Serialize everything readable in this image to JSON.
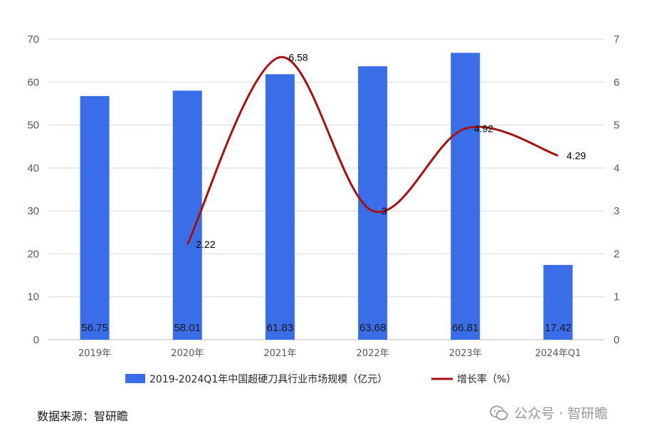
{
  "chart_data": {
    "type": "bar",
    "categories": [
      "2019年",
      "2020年",
      "2021年",
      "2022年",
      "2023年",
      "2024年Q1"
    ],
    "series": [
      {
        "name": "2019-2024Q1年中国超硬刀具行业市场规模（亿元）",
        "type": "bar",
        "axis": "left",
        "color": "#3a6ee8",
        "values": [
          56.75,
          58.01,
          61.83,
          63.68,
          66.81,
          17.42
        ],
        "labels": [
          "56.75",
          "58.01",
          "61.83",
          "63.68",
          "66.81",
          "17.42"
        ]
      },
      {
        "name": "增长率（%）",
        "type": "line",
        "axis": "right",
        "color": "#a80f0f",
        "values": [
          null,
          2.22,
          6.58,
          3,
          4.92,
          4.29
        ],
        "labels": [
          "",
          "2.22",
          "6.58",
          "3",
          "4.92",
          "4.29"
        ]
      }
    ],
    "y_left": {
      "range": [
        0,
        70
      ],
      "ticks": [
        "0",
        "10",
        "20",
        "30",
        "40",
        "50",
        "60",
        "70"
      ]
    },
    "y_right": {
      "range": [
        0,
        7
      ],
      "ticks": [
        "0",
        "1",
        "2",
        "3",
        "4",
        "5",
        "6",
        "7"
      ]
    },
    "grid": true,
    "legend_position": "bottom"
  },
  "source": "数据来源：智研瞻",
  "watermark": "公众号 · 智研瞻"
}
